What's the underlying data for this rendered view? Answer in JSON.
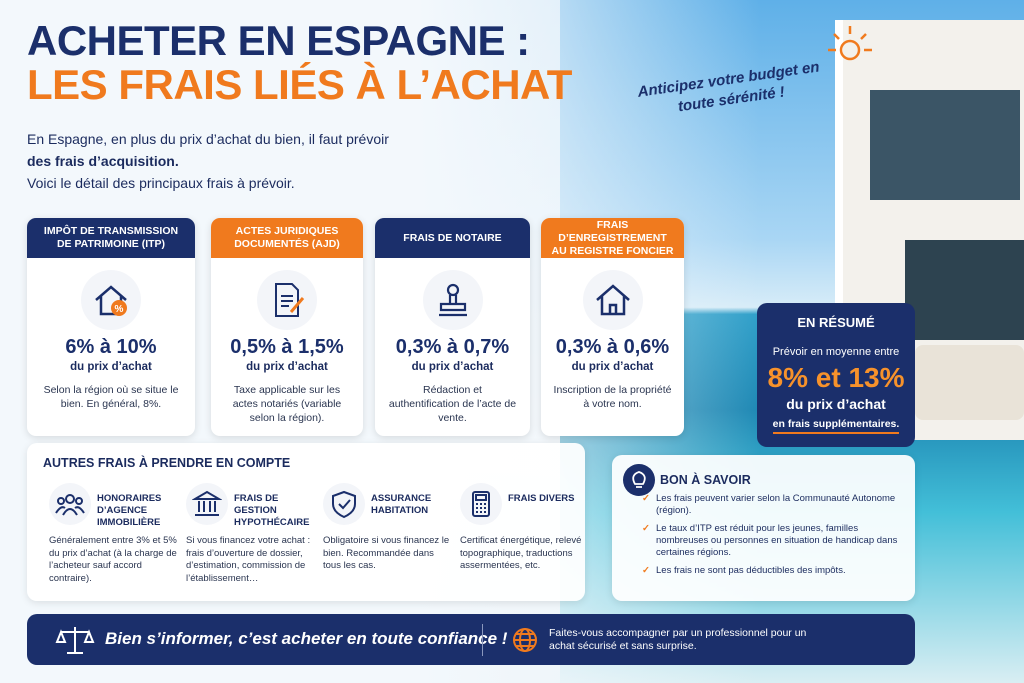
{
  "header": {
    "title_line1": "ACHETER EN ESPAGNE :",
    "title_line2": "LES FRAIS LIÉS À L’ACHAT",
    "tagline": "Anticipez votre budget en toute sérénité !"
  },
  "intro": {
    "line1": "En Espagne, en plus du prix d’achat du bien, il faut prévoir",
    "line2": "des frais d’acquisition.",
    "line3": "Voici le détail des principaux frais à prévoir."
  },
  "cards": [
    {
      "title": "IMPÔT DE TRANSMISSION DE PATRIMOINE (ITP)",
      "range": "6% à 10%",
      "sub": "du prix d’achat",
      "desc": "Selon la région où se situe le bien. En général, 8%."
    },
    {
      "title": "ACTES JURIDIQUES DOCUMENTÉS (AJD)",
      "range": "0,5% à 1,5%",
      "sub": "du prix d’achat",
      "desc": "Taxe applicable sur les actes notariés (variable selon la région)."
    },
    {
      "title": "FRAIS DE NOTAIRE",
      "range": "0,3% à 0,7%",
      "sub": "du prix d’achat",
      "desc": "Rédaction et authentification de l’acte de vente."
    },
    {
      "title": "FRAIS D’ENREGISTREMENT AU REGISTRE FONCIER",
      "range": "0,3% à 0,6%",
      "sub": "du prix d’achat",
      "desc": "Inscription de la propriété à votre nom."
    }
  ],
  "summary": {
    "title": "EN RÉSUMÉ",
    "line1": "Prévoir en moyenne entre",
    "range": "8% et 13%",
    "sub": "du prix d’achat",
    "note": "en frais supplémentaires."
  },
  "other_fees": {
    "title": "AUTRES FRAIS À PRENDRE EN COMPTE",
    "items": [
      {
        "name": "HONORAIRES D’AGENCE IMMOBILIÈRE",
        "desc": "Généralement entre 3% et 5% du prix d’achat (à la charge de l’acheteur sauf accord contraire)."
      },
      {
        "name": "FRAIS DE GESTION HYPOTHÉCAIRE",
        "desc": "Si vous financez votre achat : frais d’ouverture de dossier, d’estimation, commission de l’établissement…"
      },
      {
        "name": "ASSURANCE HABITATION",
        "desc": "Obligatoire si vous financez le bien. Recommandée dans tous les cas."
      },
      {
        "name": "FRAIS DIVERS",
        "desc": "Certificat énergétique, relevé topographique, traductions assermentées, etc."
      }
    ]
  },
  "good_to_know": {
    "title": "BON À SAVOIR",
    "items": [
      "Les frais peuvent varier selon la Communauté Autonome (région).",
      "Le taux d’ITP est réduit pour les jeunes, familles nombreuses ou personnes en situation de handicap dans certaines régions.",
      "Les frais ne sont pas déductibles des impôts."
    ]
  },
  "footer": {
    "quote": "Bien s’informer, c’est acheter en toute confiance !",
    "advice": "Faites-vous accompagner par un professionnel pour un achat sécurisé et sans surprise."
  }
}
